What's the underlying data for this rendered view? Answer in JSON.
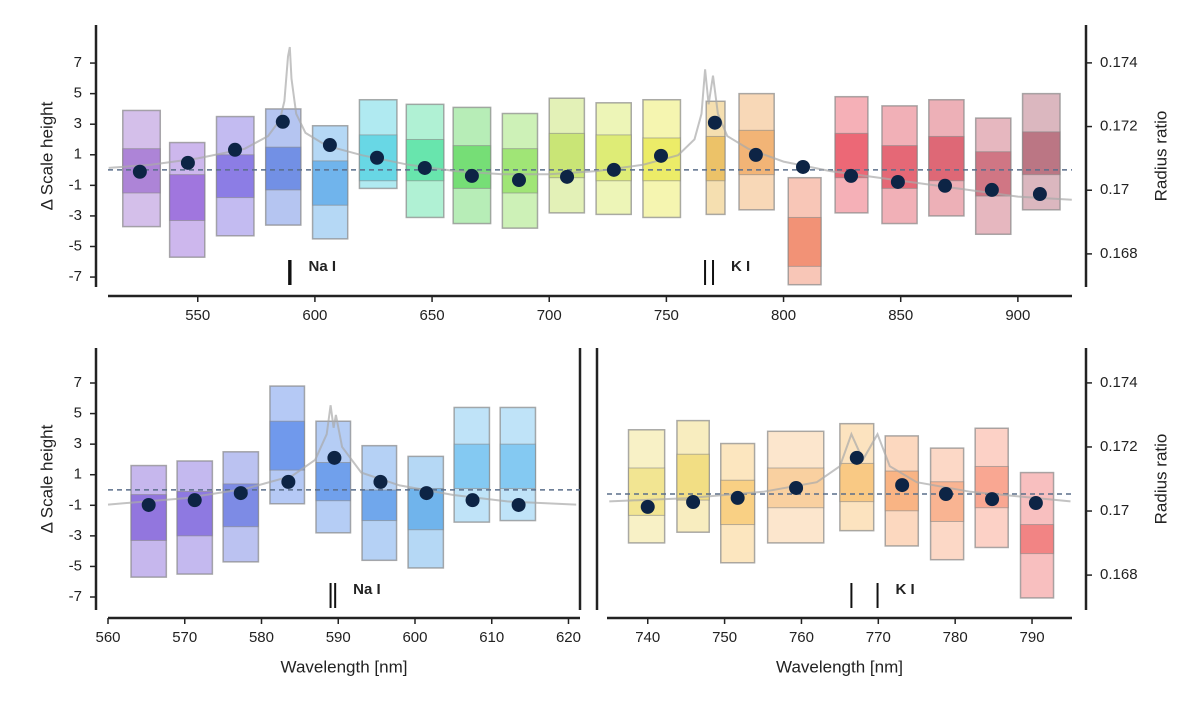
{
  "chart_data": [
    {
      "type": "spectrum",
      "ylabel": "Δ Scale height",
      "y2label": "Radius ratio",
      "xlim": [
        511.7,
        923.1
      ],
      "xticks": [
        550,
        600,
        650,
        700,
        750,
        800,
        850,
        900
      ],
      "ylim": [
        -7.65,
        9.49
      ],
      "yticks": [
        -7,
        -5,
        -3,
        -1,
        1,
        3,
        5,
        7
      ],
      "y2lim": [
        0.16696,
        0.17519
      ],
      "y2ticks": [
        0.168,
        0.17,
        0.172,
        0.174
      ],
      "bins": [
        [
          518,
          534
        ],
        [
          538,
          553
        ],
        [
          558,
          574
        ],
        [
          579,
          594
        ],
        [
          599,
          614
        ],
        [
          619,
          635
        ],
        [
          639,
          655
        ],
        [
          659,
          675
        ],
        [
          680,
          695
        ],
        [
          700,
          715
        ],
        [
          720,
          735
        ],
        [
          740,
          756
        ],
        [
          767,
          775
        ],
        [
          781,
          796
        ],
        [
          802,
          816
        ],
        [
          822,
          836
        ],
        [
          842,
          857
        ],
        [
          862,
          877
        ],
        [
          882,
          897
        ],
        [
          902,
          918
        ]
      ],
      "colors": [
        "#a070d0",
        "#9060d8",
        "#7a68e0",
        "#5c7ee0",
        "#5aa8e8",
        "#50d0e0",
        "#50e0a0",
        "#60d860",
        "#90e060",
        "#c0e060",
        "#d8e860",
        "#e8e850",
        "#e8b850",
        "#f0a860",
        "#f08060",
        "#e85060",
        "#e05060",
        "#d85060",
        "#c86070",
        "#b06070"
      ],
      "outer": [
        [
          -3.7,
          3.9
        ],
        [
          -5.7,
          1.8
        ],
        [
          -4.3,
          3.5
        ],
        [
          -3.6,
          4.0
        ],
        [
          -4.5,
          2.9
        ],
        [
          -1.2,
          4.6
        ],
        [
          -3.1,
          4.3
        ],
        [
          -3.5,
          4.1
        ],
        [
          -3.8,
          3.7
        ],
        [
          -2.8,
          4.7
        ],
        [
          -2.9,
          4.4
        ],
        [
          -3.1,
          4.6
        ],
        [
          -2.9,
          4.5
        ],
        [
          -2.6,
          5.0
        ],
        [
          -7.5,
          -0.5
        ],
        [
          -2.8,
          4.8
        ],
        [
          -3.5,
          4.2
        ],
        [
          -3.0,
          4.6
        ],
        [
          -4.2,
          3.4
        ],
        [
          -2.6,
          5.0
        ]
      ],
      "inner": [
        [
          -1.5,
          1.4
        ],
        [
          -3.3,
          -0.3
        ],
        [
          -1.8,
          1.0
        ],
        [
          -1.3,
          1.5
        ],
        [
          -2.3,
          0.6
        ],
        [
          -0.7,
          2.3
        ],
        [
          -0.7,
          2.0
        ],
        [
          -1.2,
          1.6
        ],
        [
          -1.5,
          1.4
        ],
        [
          -0.5,
          2.4
        ],
        [
          -0.7,
          2.3
        ],
        [
          -0.7,
          2.1
        ],
        [
          -0.7,
          2.2
        ],
        [
          -0.3,
          2.6
        ],
        [
          -6.3,
          -3.1
        ],
        [
          -0.5,
          2.4
        ],
        [
          -1.2,
          1.6
        ],
        [
          -0.7,
          2.2
        ],
        [
          -1.7,
          1.2
        ],
        [
          -0.3,
          2.5
        ]
      ],
      "x": [
        525.3,
        545.8,
        565.9,
        586.3,
        606.4,
        626.5,
        646.9,
        667.0,
        687.1,
        707.6,
        727.6,
        747.7,
        770.7,
        788.2,
        808.3,
        828.8,
        848.8,
        868.9,
        888.9,
        909.4
      ],
      "values": [
        0.17058,
        0.17086,
        0.17127,
        0.17215,
        0.17142,
        0.17102,
        0.1707,
        0.17045,
        0.17032,
        0.17042,
        0.17064,
        0.17108,
        0.17212,
        0.17111,
        0.17073,
        0.17045,
        0.17026,
        0.17014,
        0.17001,
        0.16988
      ],
      "dot_color": "#0d2445",
      "reference": 0.17064,
      "model": {
        "x": [
          512,
          530,
          550,
          570,
          580,
          585,
          587,
          588.5,
          589.3,
          590,
          592,
          596,
          605,
          620,
          640,
          660,
          680,
          700,
          720,
          740,
          755,
          762,
          765,
          766.5,
          768,
          769.9,
          772,
          776,
          785,
          800,
          820,
          840,
          860,
          880,
          900,
          923
        ],
        "values": [
          0.1707,
          0.1708,
          0.171,
          0.1713,
          0.1717,
          0.1722,
          0.1728,
          0.1742,
          0.1745,
          0.1735,
          0.1724,
          0.1718,
          0.1714,
          0.1711,
          0.1708,
          0.1706,
          0.1705,
          0.1705,
          0.1706,
          0.1708,
          0.1711,
          0.1716,
          0.1724,
          0.1738,
          0.1727,
          0.1736,
          0.1724,
          0.1717,
          0.1713,
          0.1709,
          0.1706,
          0.1704,
          0.1702,
          0.17,
          0.1698,
          0.1697
        ]
      },
      "lines": [
        {
          "label": "Na I",
          "x": [
            589.0,
            589.6
          ]
        },
        {
          "label": "K I",
          "x": [
            766.5,
            769.9
          ]
        }
      ]
    },
    {
      "type": "spectrum",
      "ylabel": "Δ Scale height",
      "xlabel": "Wavelength [nm]",
      "xlim": [
        560,
        621.5
      ],
      "xticks": [
        560,
        570,
        580,
        590,
        600,
        610,
        620
      ],
      "ylim": [
        -7.85,
        9.29
      ],
      "yticks": [
        -7,
        -5,
        -3,
        -1,
        1,
        3,
        5,
        7
      ],
      "y2lim": [
        0.16691,
        0.17509
      ],
      "bins": [
        [
          563.0,
          567.6
        ],
        [
          569.0,
          573.6
        ],
        [
          575.0,
          579.6
        ],
        [
          581.1,
          585.6
        ],
        [
          587.1,
          591.6
        ],
        [
          593.1,
          597.6
        ],
        [
          599.1,
          603.7
        ],
        [
          605.1,
          609.7
        ],
        [
          611.1,
          615.7
        ]
      ],
      "colors": [
        "#8060d8",
        "#7c64dc",
        "#6878e0",
        "#5a88e8",
        "#5a90e8",
        "#5a98e8",
        "#5aa8e8",
        "#70c0f0",
        "#70c0f0"
      ],
      "outer": [
        [
          -5.7,
          1.6
        ],
        [
          -5.5,
          1.9
        ],
        [
          -4.7,
          2.5
        ],
        [
          -0.9,
          6.8
        ],
        [
          -2.8,
          4.5
        ],
        [
          -4.6,
          2.9
        ],
        [
          -5.1,
          2.2
        ],
        [
          -2.1,
          5.4
        ],
        [
          -2.0,
          5.4
        ]
      ],
      "inner": [
        [
          -3.3,
          -0.3
        ],
        [
          -3.0,
          -0.1
        ],
        [
          -2.4,
          0.4
        ],
        [
          1.3,
          4.5
        ],
        [
          -0.7,
          1.8
        ],
        [
          -2.0,
          0
        ],
        [
          -2.6,
          0.1
        ],
        [
          0.1,
          3.0
        ],
        [
          0.1,
          3.0
        ]
      ],
      "x": [
        565.3,
        571.3,
        577.3,
        583.5,
        589.5,
        595.5,
        601.5,
        607.5,
        613.5
      ],
      "values": [
        0.17019,
        0.17034,
        0.17056,
        0.17091,
        0.17166,
        0.17091,
        0.17056,
        0.17034,
        0.17019
      ],
      "dot_color": "#0d2445",
      "reference": 0.17066,
      "model": {
        "x": [
          560,
          570,
          578,
          584,
          587,
          588.5,
          589,
          589.4,
          589.7,
          590.5,
          593,
          598,
          605,
          612,
          621
        ],
        "values": [
          0.1702,
          0.1704,
          0.1707,
          0.1711,
          0.1716,
          0.1724,
          0.1733,
          0.1726,
          0.173,
          0.172,
          0.1712,
          0.1708,
          0.1705,
          0.1703,
          0.1702
        ]
      },
      "lines": [
        {
          "label": "Na I",
          "x": [
            589.0,
            589.6
          ]
        }
      ]
    },
    {
      "type": "spectrum",
      "y2label": "Radius ratio",
      "xlabel": "Wavelength [nm]",
      "xlim": [
        734.7,
        795.2
      ],
      "xticks": [
        740,
        750,
        760,
        770,
        780,
        790
      ],
      "ylim": [
        -7.59,
        9.55
      ],
      "y2lim": [
        0.16691,
        0.17509
      ],
      "y2ticks": [
        0.168,
        0.17,
        0.172,
        0.174
      ],
      "bins": [
        [
          737.5,
          742.2
        ],
        [
          743.8,
          748.0
        ],
        [
          749.5,
          753.9
        ],
        [
          755.6,
          762.9
        ],
        [
          765.0,
          769.4
        ],
        [
          770.9,
          775.2
        ],
        [
          776.8,
          781.1
        ],
        [
          782.6,
          786.9
        ],
        [
          788.5,
          792.8
        ]
      ],
      "colors": [
        "#f0e080",
        "#f0d870",
        "#f8c870",
        "#f8c890",
        "#f8c070",
        "#f8a870",
        "#f8a880",
        "#f89880",
        "#f07070"
      ],
      "outer": [
        [
          -3.2,
          4.2
        ],
        [
          -2.5,
          4.8
        ],
        [
          -4.5,
          3.3
        ],
        [
          -3.2,
          4.1
        ],
        [
          -2.4,
          4.6
        ],
        [
          -3.4,
          3.8
        ],
        [
          -4.3,
          3.0
        ],
        [
          -3.5,
          4.3
        ],
        [
          -6.8,
          1.4
        ]
      ],
      "inner": [
        [
          -1.4,
          1.7
        ],
        [
          -0.4,
          2.6
        ],
        [
          -2.0,
          0.9
        ],
        [
          -0.9,
          1.7
        ],
        [
          -0.5,
          2.0
        ],
        [
          -1.1,
          1.5
        ],
        [
          -1.8,
          0.8
        ],
        [
          -0.9,
          1.8
        ],
        [
          -3.9,
          -2.0
        ]
      ],
      "x": [
        740.0,
        745.9,
        751.7,
        759.3,
        767.2,
        773.1,
        778.8,
        784.8,
        790.5
      ],
      "values": [
        0.17013,
        0.17028,
        0.17041,
        0.17072,
        0.17166,
        0.17081,
        0.17053,
        0.17037,
        0.17025
      ],
      "dot_color": "#0d2445",
      "reference": 0.17053,
      "model": {
        "x": [
          735,
          745,
          755,
          762,
          765,
          766.5,
          768,
          769.9,
          771.5,
          775,
          782,
          795
        ],
        "values": [
          0.1703,
          0.1704,
          0.1706,
          0.1709,
          0.1714,
          0.1724,
          0.1716,
          0.1724,
          0.1714,
          0.1709,
          0.1706,
          0.1703
        ]
      },
      "lines": [
        {
          "label": "K I",
          "x": [
            766.5,
            769.9
          ]
        }
      ]
    }
  ]
}
